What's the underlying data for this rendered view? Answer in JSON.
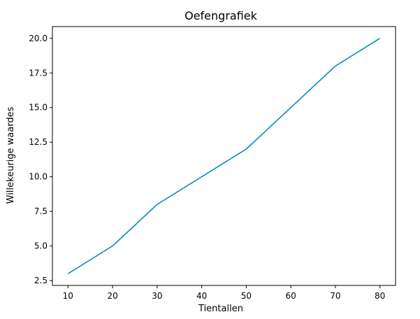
{
  "chart_data": {
    "type": "line",
    "title": "Oefengrafiek",
    "xlabel": "Tientallen",
    "ylabel": "Willekeurige waardes",
    "x": [
      10,
      20,
      30,
      40,
      50,
      60,
      70,
      80
    ],
    "series": [
      {
        "values": [
          3,
          5,
          8,
          10,
          12,
          15,
          18,
          20
        ],
        "color": "#0a8bc4"
      }
    ],
    "xticks": [
      10,
      20,
      30,
      40,
      50,
      60,
      70,
      80
    ],
    "xtick_labels": [
      "10",
      "20",
      "30",
      "40",
      "50",
      "60",
      "70",
      "80"
    ],
    "yticks": [
      2.5,
      5.0,
      7.5,
      10.0,
      12.5,
      15.0,
      17.5,
      20.0
    ],
    "ytick_labels": [
      "2.5",
      "5.0",
      "7.5",
      "10.0",
      "12.5",
      "15.0",
      "17.5",
      "20.0"
    ],
    "xlim": [
      6.5,
      83.5
    ],
    "ylim": [
      2.15,
      20.85
    ],
    "grid": false,
    "legend": "none"
  }
}
